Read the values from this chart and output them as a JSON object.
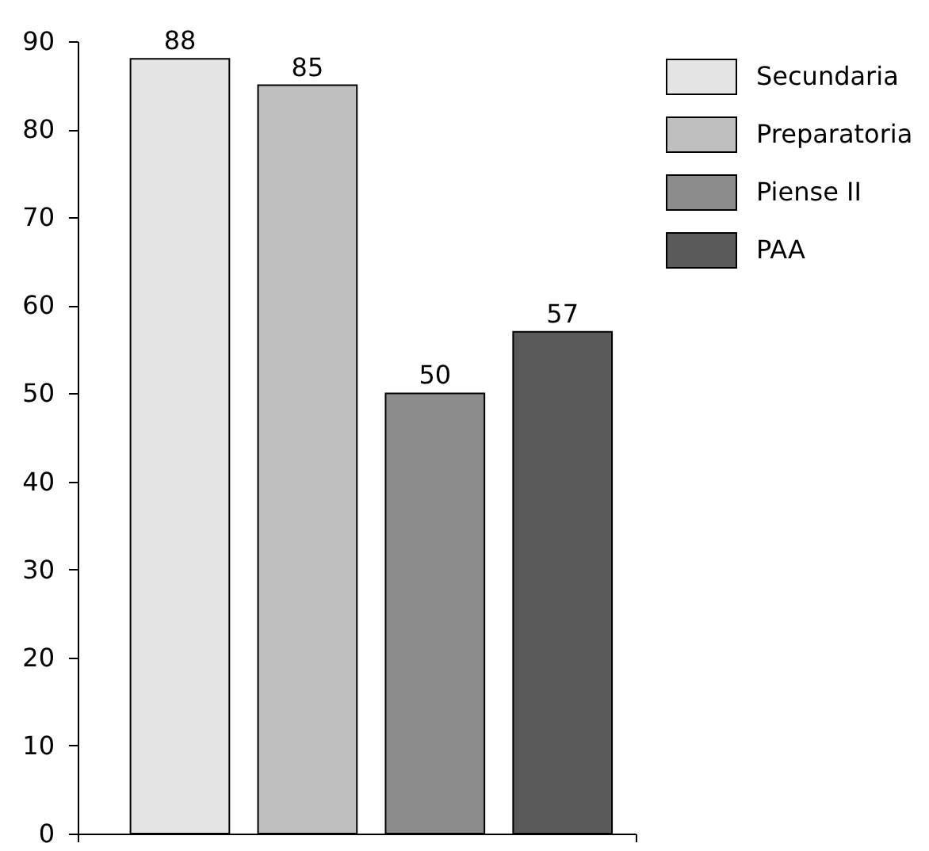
{
  "chart_data": {
    "type": "bar",
    "categories": [
      null
    ],
    "series": [
      {
        "name": "Secundaria",
        "color": "#e5e5e5",
        "values": [
          88
        ]
      },
      {
        "name": "Preparatoria",
        "color": "#bfbfbf",
        "values": [
          85
        ]
      },
      {
        "name": "Piense II",
        "color": "#8c8c8c",
        "values": [
          50
        ]
      },
      {
        "name": "PAA",
        "color": "#5a5a5a",
        "values": [
          57
        ]
      }
    ],
    "ylim": [
      0,
      90
    ],
    "yticks": [
      0,
      10,
      20,
      30,
      40,
      50,
      60,
      70,
      80,
      90
    ],
    "data_labels": true,
    "legend": "top right",
    "grid": false,
    "tick_labels": "y"
  }
}
